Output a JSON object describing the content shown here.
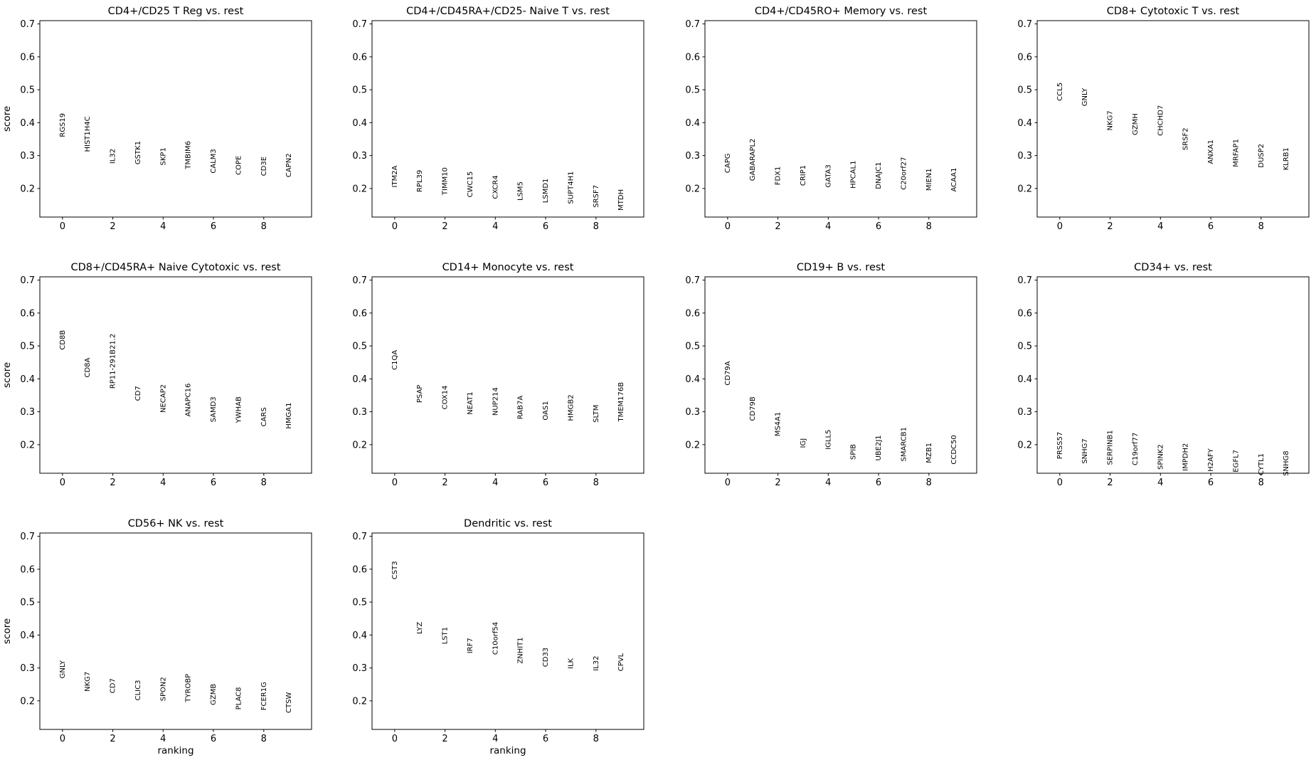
{
  "figure": {
    "background": "#ffffff",
    "axis_color": "#000000",
    "text_color": "#000000"
  },
  "chart_data": [
    {
      "type": "scatter",
      "title": "CD4+/CD25 T Reg vs. rest",
      "xlabel": "",
      "ylabel": "score",
      "xlim": [
        -0.9,
        9.9
      ],
      "ylim": [
        0.1132,
        0.71
      ],
      "xticks": [
        0,
        2,
        4,
        6,
        8
      ],
      "yticks": [
        0.2,
        0.3,
        0.4,
        0.5,
        0.6,
        0.7
      ],
      "genes": [
        "RGS19",
        "HIST1H4C",
        "IL32",
        "GSTK1",
        "SKP1",
        "TMBIM6",
        "CALM3",
        "COPE",
        "CD3E",
        "CAPN2"
      ],
      "scores": [
        0.356,
        0.311,
        0.275,
        0.273,
        0.27,
        0.259,
        0.246,
        0.241,
        0.238,
        0.234
      ]
    },
    {
      "type": "scatter",
      "title": "CD4+/CD45RA+/CD25- Naive T vs. rest",
      "xlabel": "",
      "ylabel": "",
      "xlim": [
        -0.9,
        9.9
      ],
      "ylim": [
        0.1132,
        0.71
      ],
      "xticks": [
        0,
        2,
        4,
        6,
        8
      ],
      "yticks": [
        0.2,
        0.3,
        0.4,
        0.5,
        0.6,
        0.7
      ],
      "genes": [
        "ITM2A",
        "RPL39",
        "TIMM10",
        "CWC15",
        "CXCR4",
        "LSM5",
        "LSMD1",
        "SUPT4H1",
        "SRSF7",
        "MTDH"
      ],
      "scores": [
        0.203,
        0.189,
        0.18,
        0.173,
        0.168,
        0.163,
        0.156,
        0.153,
        0.142,
        0.133
      ]
    },
    {
      "type": "scatter",
      "title": "CD4+/CD45RO+ Memory vs. rest",
      "xlabel": "",
      "ylabel": "",
      "xlim": [
        -0.9,
        9.9
      ],
      "ylim": [
        0.1132,
        0.71
      ],
      "xticks": [
        0,
        2,
        4,
        6,
        8
      ],
      "yticks": [
        0.2,
        0.3,
        0.4,
        0.5,
        0.6,
        0.7
      ],
      "genes": [
        "CAPG",
        "GABARAPL2",
        "FDX1",
        "CRIP1",
        "GATA3",
        "HPCAL1",
        "DNAJC1",
        "C20orf27",
        "MIEN1",
        "ACAA1"
      ],
      "scores": [
        0.247,
        0.223,
        0.21,
        0.208,
        0.203,
        0.2,
        0.198,
        0.196,
        0.193,
        0.19
      ]
    },
    {
      "type": "scatter",
      "title": "CD8+ Cytotoxic T vs. rest",
      "xlabel": "",
      "ylabel": "",
      "xlim": [
        -0.9,
        9.9
      ],
      "ylim": [
        0.1132,
        0.71
      ],
      "xticks": [
        0,
        2,
        4,
        6,
        8
      ],
      "yticks": [
        0.2,
        0.3,
        0.4,
        0.5,
        0.6,
        0.7
      ],
      "genes": [
        "CCL5",
        "GNLY",
        "NKG7",
        "GZMH",
        "CHCHD7",
        "SRSF2",
        "ANXA1",
        "MRFAP1",
        "DUSP2",
        "KLRB1"
      ],
      "scores": [
        0.466,
        0.45,
        0.376,
        0.362,
        0.36,
        0.316,
        0.274,
        0.265,
        0.263,
        0.255
      ]
    },
    {
      "type": "scatter",
      "title": "CD8+/CD45RA+ Naive Cytotoxic vs. rest",
      "xlabel": "",
      "ylabel": "score",
      "xlim": [
        -0.9,
        9.9
      ],
      "ylim": [
        0.1132,
        0.71
      ],
      "xticks": [
        0,
        2,
        4,
        6,
        8
      ],
      "yticks": [
        0.2,
        0.3,
        0.4,
        0.5,
        0.6,
        0.7
      ],
      "genes": [
        "CD8B",
        "CD8A",
        "RP11-291B21.2",
        "CD7",
        "NECAP2",
        "ANAPC16",
        "SAMD3",
        "YWHAB",
        "CARS",
        "HMGA1"
      ],
      "scores": [
        0.488,
        0.404,
        0.37,
        0.333,
        0.297,
        0.285,
        0.268,
        0.266,
        0.255,
        0.248
      ]
    },
    {
      "type": "scatter",
      "title": "CD14+ Monocyte vs. rest",
      "xlabel": "",
      "ylabel": "",
      "xlim": [
        -0.9,
        9.9
      ],
      "ylim": [
        0.1132,
        0.71
      ],
      "xticks": [
        0,
        2,
        4,
        6,
        8
      ],
      "yticks": [
        0.2,
        0.3,
        0.4,
        0.5,
        0.6,
        0.7
      ],
      "genes": [
        "C1QA",
        "PSAP",
        "COX14",
        "NEAT1",
        "NUP214",
        "RAB7A",
        "OAS1",
        "HMGB2",
        "SLTM",
        "TMEM176B"
      ],
      "scores": [
        0.427,
        0.327,
        0.307,
        0.291,
        0.288,
        0.277,
        0.274,
        0.272,
        0.267,
        0.27
      ]
    },
    {
      "type": "scatter",
      "title": "CD19+ B vs. rest",
      "xlabel": "",
      "ylabel": "",
      "xlim": [
        -0.9,
        9.9
      ],
      "ylim": [
        0.1132,
        0.71
      ],
      "xticks": [
        0,
        2,
        4,
        6,
        8
      ],
      "yticks": [
        0.2,
        0.3,
        0.4,
        0.5,
        0.6,
        0.7
      ],
      "genes": [
        "CD79A",
        "CD79B",
        "MS4A1",
        "IGJ",
        "IGLL5",
        "SPIB",
        "UBE2J1",
        "SMARCB1",
        "MZB1",
        "CCDC50"
      ],
      "scores": [
        0.38,
        0.272,
        0.225,
        0.19,
        0.185,
        0.154,
        0.151,
        0.149,
        0.144,
        0.14
      ]
    },
    {
      "type": "scatter",
      "title": "CD34+ vs. rest",
      "xlabel": "",
      "ylabel": "",
      "xlim": [
        -0.9,
        9.9
      ],
      "ylim": [
        0.1132,
        0.71
      ],
      "xticks": [
        0,
        2,
        4,
        6,
        8
      ],
      "yticks": [
        0.2,
        0.3,
        0.4,
        0.5,
        0.6,
        0.7
      ],
      "genes": [
        "PRSS57",
        "SNHG7",
        "SERPINB1",
        "C19orf77",
        "SPINK2",
        "IMPDH2",
        "H2AFY",
        "EGFL7",
        "CYTL1",
        "SNHG8"
      ],
      "scores": [
        0.156,
        0.142,
        0.138,
        0.137,
        0.124,
        0.12,
        0.118,
        0.116,
        0.107,
        0.105
      ]
    },
    {
      "type": "scatter",
      "title": "CD56+ NK vs. rest",
      "xlabel": "ranking",
      "ylabel": "score",
      "xlim": [
        -0.9,
        9.9
      ],
      "ylim": [
        0.1132,
        0.71
      ],
      "xticks": [
        0,
        2,
        4,
        6,
        8
      ],
      "yticks": [
        0.2,
        0.3,
        0.4,
        0.5,
        0.6,
        0.7
      ],
      "genes": [
        "GNLY",
        "NKG7",
        "CD7",
        "CLIC3",
        "SPON2",
        "TYROBP",
        "GZMB",
        "PLAC8",
        "FCER1G",
        "CTSW"
      ],
      "scores": [
        0.268,
        0.228,
        0.223,
        0.201,
        0.199,
        0.196,
        0.187,
        0.173,
        0.171,
        0.163
      ]
    },
    {
      "type": "scatter",
      "title": "Dendritic vs. rest",
      "xlabel": "ranking",
      "ylabel": "",
      "xlim": [
        -0.9,
        9.9
      ],
      "ylim": [
        0.1132,
        0.71
      ],
      "xticks": [
        0,
        2,
        4,
        6,
        8
      ],
      "yticks": [
        0.2,
        0.3,
        0.4,
        0.5,
        0.6,
        0.7
      ],
      "genes": [
        "CST3",
        "LYZ",
        "LST1",
        "IRF7",
        "C10orf54",
        "ZNHIT1",
        "CD33",
        "ILK",
        "IL32",
        "CPVL"
      ],
      "scores": [
        0.569,
        0.403,
        0.372,
        0.344,
        0.34,
        0.313,
        0.303,
        0.297,
        0.291,
        0.29
      ]
    }
  ]
}
